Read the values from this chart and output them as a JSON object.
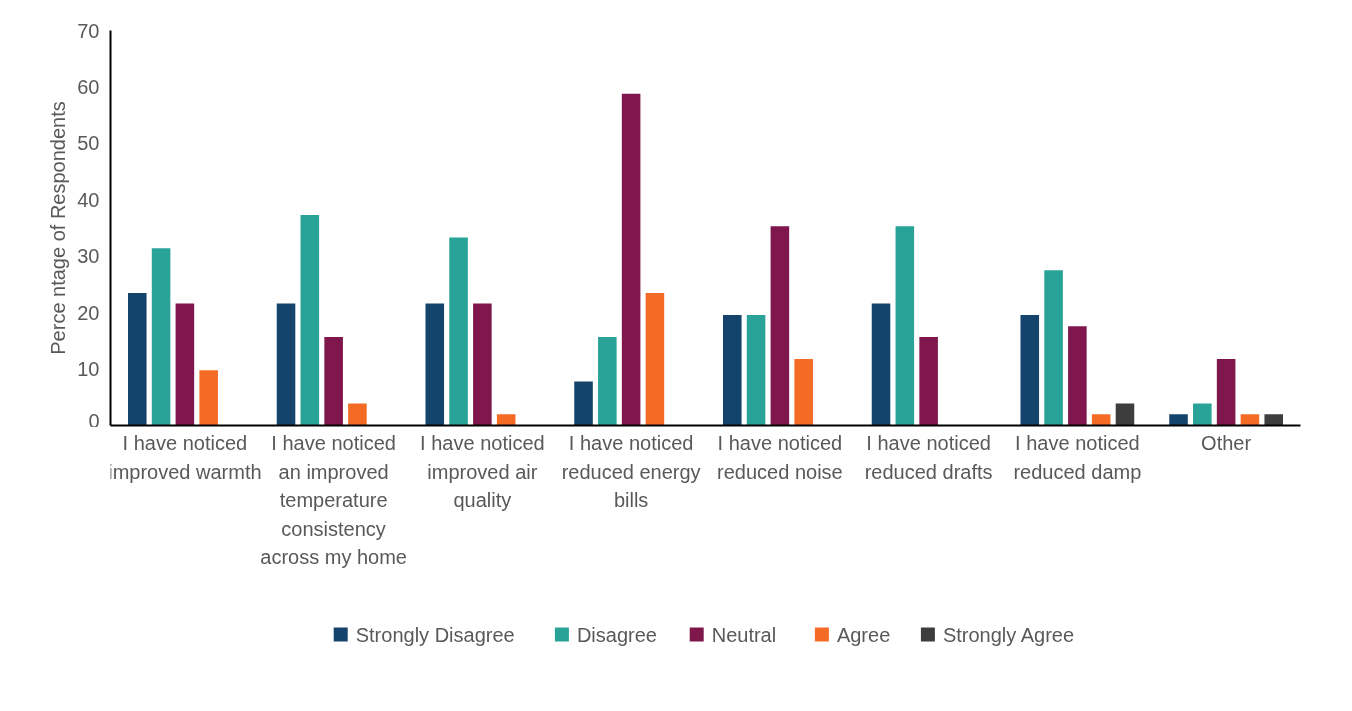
{
  "chart_data": {
    "type": "bar",
    "ylabel": "Perce ntage of Respondents",
    "categories": [
      "I have noticed improved warmth",
      "I have noticed an improved temperature consistency across my home",
      "I have noticed improved air quality",
      "I have noticed reduced energy bills",
      "I have noticed reduced noise",
      "I have noticed reduced drafts",
      "I have noticed reduced damp",
      "Other"
    ],
    "series": [
      {
        "name": "Strongly Disagree",
        "color": "#14446c",
        "values": [
          23.5,
          21.6,
          21.6,
          7.8,
          19.6,
          21.6,
          19.6,
          2.0
        ]
      },
      {
        "name": "Disagree",
        "color": "#29a398",
        "values": [
          31.4,
          37.3,
          33.3,
          15.7,
          19.6,
          35.3,
          27.5,
          3.9
        ]
      },
      {
        "name": "Neutral",
        "color": "#7f174d",
        "values": [
          21.6,
          15.7,
          21.6,
          58.8,
          35.3,
          15.7,
          17.6,
          11.8
        ]
      },
      {
        "name": "Agree",
        "color": "#f46b25",
        "values": [
          9.8,
          3.9,
          2.0,
          23.5,
          11.8,
          0,
          2.0,
          2.0
        ]
      },
      {
        "name": "Strongly Agree",
        "color": "#3d3d3d",
        "values": [
          0,
          0,
          0,
          0,
          0,
          0,
          3.9,
          2.0
        ]
      }
    ],
    "ylim": [
      0,
      70
    ],
    "yticks": [
      0,
      10,
      20,
      30,
      40,
      50,
      60,
      70
    ],
    "grid": false,
    "legend": "bottom"
  }
}
